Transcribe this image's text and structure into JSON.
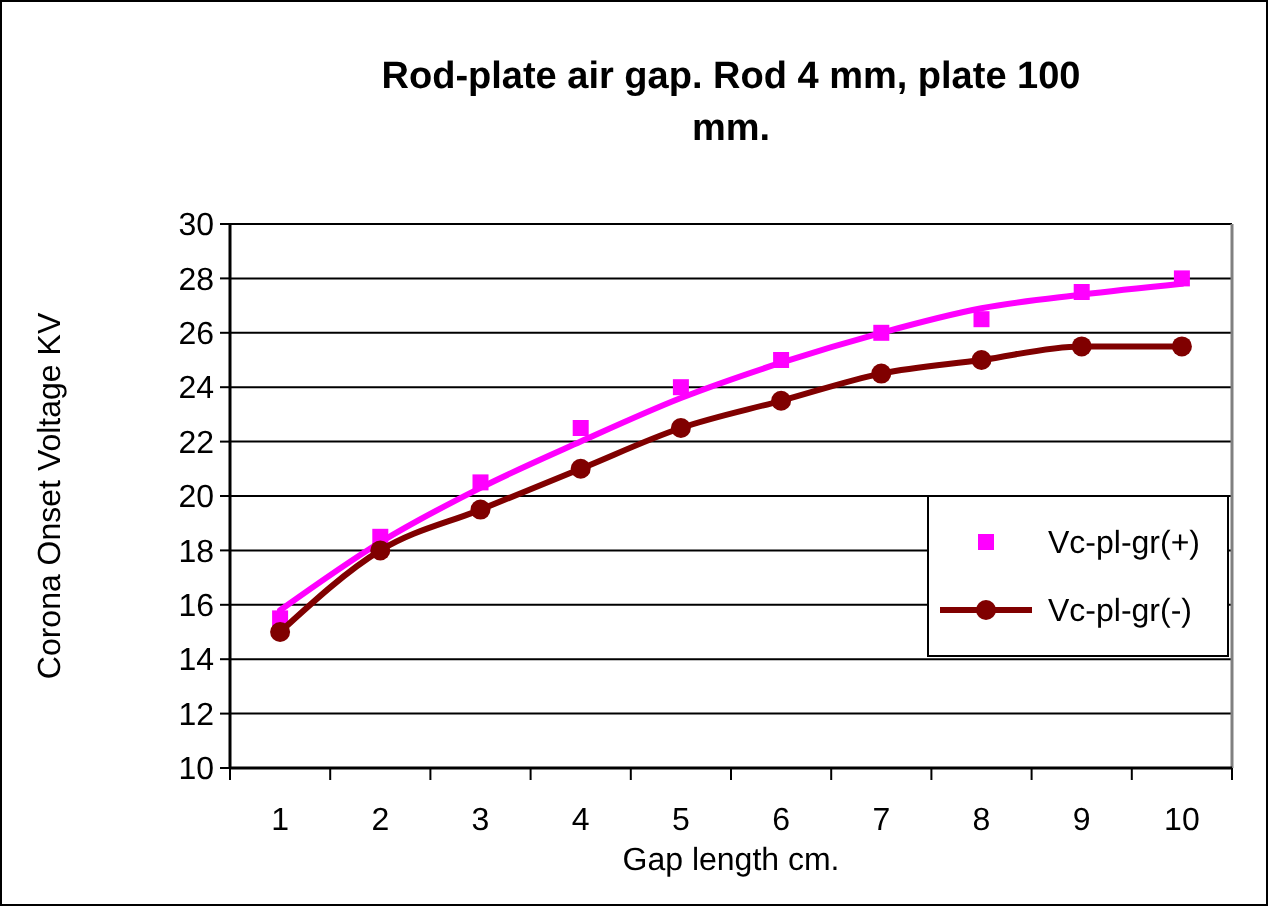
{
  "chart_data": {
    "type": "line",
    "title": "Rod-plate air gap. Rod 4 mm, plate 100 mm.",
    "xlabel": "Gap length cm.",
    "ylabel": "Corona Onset Voltage KV",
    "categories": [
      "1",
      "2",
      "3",
      "4",
      "5",
      "6",
      "7",
      "8",
      "9",
      "10"
    ],
    "series": [
      {
        "name": "Vc-pl-gr(+)",
        "type": "scatter",
        "color": "#ff00ff",
        "marker": "square",
        "values": [
          15.5,
          18.5,
          20.5,
          22.5,
          24,
          25,
          26,
          26.5,
          27.5,
          28
        ]
      },
      {
        "color": "#ff00ff",
        "marker": "none",
        "values": [
          15.8,
          18.3,
          20.3,
          22.0,
          23.6,
          24.9,
          26.0,
          26.9,
          27.4,
          27.8
        ]
      },
      {
        "name": "Vc-pl-gr(-)",
        "color": "#800000",
        "marker": "circle",
        "values": [
          15,
          18,
          19.5,
          21,
          22.5,
          23.5,
          24.5,
          25,
          25.5,
          25.5
        ]
      }
    ],
    "ylim": [
      10,
      30
    ],
    "yticks": [
      10,
      12,
      14,
      16,
      18,
      20,
      22,
      24,
      26,
      28,
      30
    ],
    "grid": "y",
    "legend": "bottom right"
  }
}
